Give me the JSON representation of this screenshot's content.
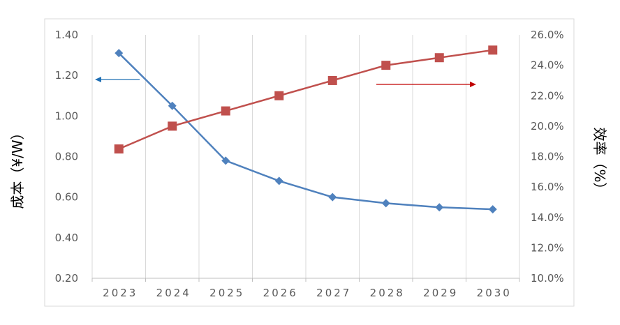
{
  "chart_data": {
    "type": "line",
    "categories": [
      "2023",
      "2024",
      "2025",
      "2026",
      "2027",
      "2028",
      "2029",
      "2030"
    ],
    "series": [
      {
        "axis": "left",
        "color": "#4f81bd",
        "marker": "diamond",
        "values": [
          1.31,
          1.05,
          0.78,
          0.68,
          0.6,
          0.57,
          0.55,
          0.54
        ]
      },
      {
        "axis": "right",
        "color": "#c0504d",
        "marker": "square",
        "values": [
          18.5,
          20.0,
          21.0,
          22.0,
          23.0,
          24.0,
          24.5,
          25.0
        ]
      }
    ],
    "ylabel": "成本（¥/W）",
    "ylabel_right": "效率（%）",
    "ylim": [
      0.2,
      1.4
    ],
    "ylim_right": [
      10.0,
      26.0
    ],
    "y_ticks": [
      "1.40",
      "1.20",
      "1.00",
      "0.80",
      "0.60",
      "0.40",
      "0.20"
    ],
    "y_ticks_right": [
      "26.0%",
      "24.0%",
      "22.0%",
      "20.0%",
      "18.0%",
      "16.0%",
      "14.0%",
      "12.0%",
      "10.0%"
    ],
    "annotations": [
      {
        "type": "arrow",
        "direction": "left",
        "color": "#1f6fb4",
        "indicates_axis": "left"
      },
      {
        "type": "arrow",
        "direction": "right",
        "color": "#c00000",
        "indicates_axis": "right"
      }
    ],
    "grid": "vertical",
    "legend": "none"
  }
}
